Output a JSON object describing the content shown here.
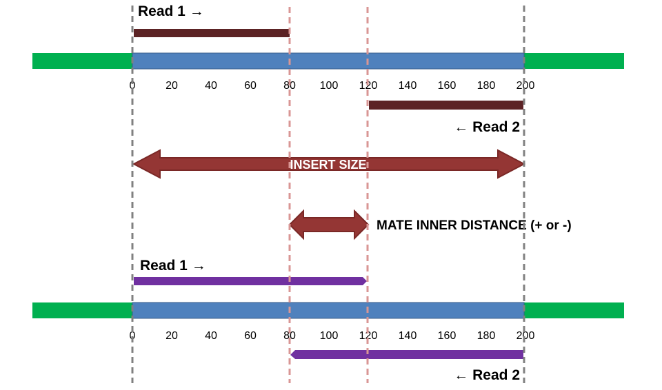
{
  "colors": {
    "genome_flank": "#00b050",
    "insert_region": "#4f81bd",
    "insert_region_border": "#385d8a",
    "read_scenario1": "#5c2325",
    "read_scenario2": "#7030a0",
    "big_arrow_fill": "#943634",
    "big_arrow_stroke": "#7a2826",
    "guide_gray": "#808080",
    "guide_pink": "#d99694"
  },
  "axis_ticks": [
    "0",
    "20",
    "40",
    "60",
    "80",
    "100",
    "120",
    "140",
    "160",
    "180",
    "200"
  ],
  "scenario_top": {
    "read1": {
      "label": "Read 1 →",
      "start": 0,
      "end": 80
    },
    "read2": {
      "label": "← Read 2",
      "start": 120,
      "end": 200
    }
  },
  "insert_size": {
    "label": "INSERT SIZE",
    "start": 0,
    "end": 200
  },
  "mate_inner_distance": {
    "label": "MATE INNER DISTANCE (+ or -)",
    "start": 80,
    "end": 120
  },
  "scenario_bottom": {
    "read1": {
      "label": "Read 1 →",
      "start": 0,
      "end": 120
    },
    "read2": {
      "label": "← Read 2",
      "start": 80,
      "end": 200
    }
  },
  "guides": {
    "gray_positions": [
      0,
      200
    ],
    "pink_positions": [
      80,
      120
    ]
  }
}
